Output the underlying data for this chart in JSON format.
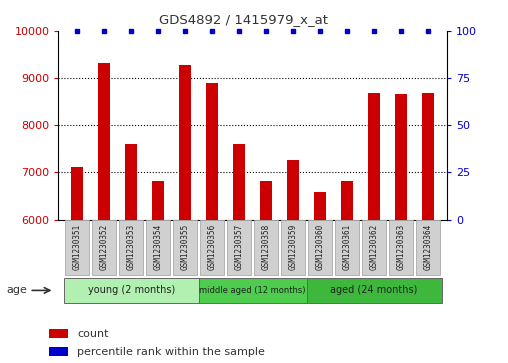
{
  "title": "GDS4892 / 1415979_x_at",
  "samples": [
    "GSM1230351",
    "GSM1230352",
    "GSM1230353",
    "GSM1230354",
    "GSM1230355",
    "GSM1230356",
    "GSM1230357",
    "GSM1230358",
    "GSM1230359",
    "GSM1230360",
    "GSM1230361",
    "GSM1230362",
    "GSM1230363",
    "GSM1230364"
  ],
  "counts": [
    7120,
    9320,
    7600,
    6820,
    9280,
    8890,
    7600,
    6820,
    7270,
    6580,
    6820,
    8680,
    8660,
    8680
  ],
  "percentile_ranks": [
    100,
    100,
    100,
    100,
    100,
    100,
    100,
    100,
    100,
    100,
    100,
    100,
    100,
    100
  ],
  "bar_color": "#cc0000",
  "dot_color": "#0000cc",
  "ylim_left": [
    6000,
    10000
  ],
  "ylim_right": [
    0,
    100
  ],
  "yticks_left": [
    6000,
    7000,
    8000,
    9000,
    10000
  ],
  "yticks_right": [
    0,
    25,
    50,
    75,
    100
  ],
  "groups": [
    {
      "label": "young (2 months)",
      "start": 0,
      "end": 5
    },
    {
      "label": "middle aged (12 months)",
      "start": 5,
      "end": 9
    },
    {
      "label": "aged (24 months)",
      "start": 9,
      "end": 14
    }
  ],
  "group_colors": [
    "#b2f0b2",
    "#4dcc4d",
    "#3db83d"
  ],
  "age_label": "age",
  "legend_count_label": "count",
  "legend_percentile_label": "percentile rank within the sample",
  "background_color": "#ffffff",
  "plot_bg_color": "#ffffff",
  "grid_color": "#000000",
  "tick_label_color_left": "#cc0000",
  "tick_label_color_right": "#0000cc",
  "title_color": "#333333",
  "sample_box_color": "#d0d0d0",
  "sample_box_edge_color": "#aaaaaa"
}
